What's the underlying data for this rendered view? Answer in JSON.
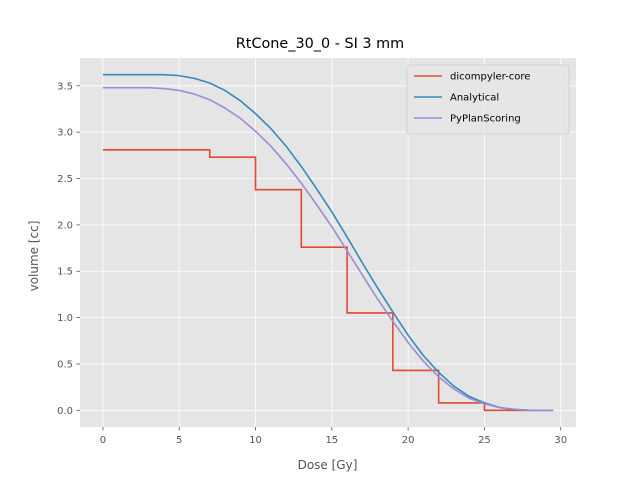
{
  "chart_data": {
    "type": "line",
    "title": "RtCone_30_0 - SI 3 mm",
    "xlabel": "Dose [Gy]",
    "ylabel": "volume [cc]",
    "xlim": [
      -1.5,
      31.0
    ],
    "ylim": [
      -0.18,
      3.8
    ],
    "xticks": [
      0,
      5,
      10,
      15,
      20,
      25,
      30
    ],
    "yticks": [
      0.0,
      0.5,
      1.0,
      1.5,
      2.0,
      2.5,
      3.0,
      3.5
    ],
    "grid": true,
    "legend_position": "top-right",
    "series": [
      {
        "name": "dicompyler-core",
        "color": "#E24A33",
        "style": "step",
        "x": [
          0,
          7,
          7,
          10,
          10,
          13,
          13,
          16,
          16,
          19,
          19,
          22,
          22,
          25,
          25,
          29.5
        ],
        "y": [
          2.81,
          2.81,
          2.73,
          2.73,
          2.38,
          2.38,
          1.76,
          1.76,
          1.05,
          1.05,
          0.43,
          0.43,
          0.08,
          0.08,
          0.0,
          0.0
        ]
      },
      {
        "name": "Analytical",
        "color": "#348ABD",
        "style": "line",
        "x": [
          0,
          1,
          2,
          3,
          4,
          5,
          6,
          7,
          8,
          9,
          10,
          11,
          12,
          13,
          14,
          15,
          16,
          17,
          18,
          19,
          20,
          21,
          22,
          23,
          24,
          25,
          26,
          27,
          28,
          29,
          29.5
        ],
        "y": [
          3.62,
          3.62,
          3.62,
          3.62,
          3.62,
          3.61,
          3.58,
          3.53,
          3.45,
          3.34,
          3.2,
          3.04,
          2.85,
          2.63,
          2.39,
          2.14,
          1.87,
          1.59,
          1.32,
          1.06,
          0.81,
          0.59,
          0.41,
          0.26,
          0.15,
          0.08,
          0.03,
          0.01,
          0.0,
          0.0,
          0.0
        ]
      },
      {
        "name": "PyPlanScoring",
        "color": "#988ED5",
        "style": "line",
        "x": [
          0,
          1,
          2,
          3,
          4,
          5,
          6,
          7,
          8,
          9,
          10,
          11,
          12,
          13,
          14,
          15,
          16,
          17,
          18,
          19,
          20,
          21,
          22,
          23,
          24,
          25,
          26,
          27,
          28,
          29,
          29.5
        ],
        "y": [
          3.48,
          3.48,
          3.48,
          3.48,
          3.47,
          3.45,
          3.41,
          3.35,
          3.26,
          3.15,
          3.01,
          2.85,
          2.66,
          2.45,
          2.22,
          1.98,
          1.72,
          1.46,
          1.2,
          0.96,
          0.73,
          0.53,
          0.36,
          0.23,
          0.13,
          0.07,
          0.03,
          0.01,
          0.0,
          0.0,
          0.0
        ]
      }
    ]
  }
}
